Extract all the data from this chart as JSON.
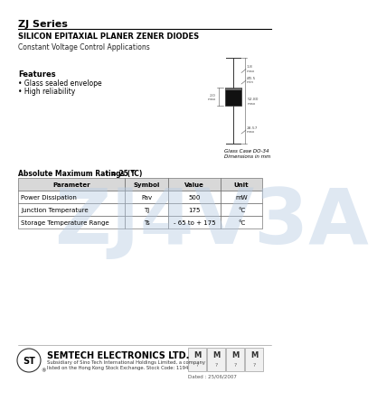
{
  "title": "ZJ Series",
  "subtitle": "SILICON EPITAXIAL PLANER ZENER DIODES",
  "application": "Constant Voltage Control Applications",
  "features_title": "Features",
  "features": [
    "Glass sealed envelope",
    "High reliability"
  ],
  "package_label": "Glass Case DO-34\nDimensions in mm",
  "table_title": "Absolute Maximum Ratings (T",
  "table_title2": " = 25 °C)",
  "table_headers": [
    "Parameter",
    "Symbol",
    "Value",
    "Unit"
  ],
  "table_rows": [
    [
      "Power Dissipation",
      "Pav",
      "500",
      "mW"
    ],
    [
      "Junction Temperature",
      "Tj",
      "175",
      "°C"
    ],
    [
      "Storage Temperature Range",
      "Ts",
      "- 65 to + 175",
      "°C"
    ]
  ],
  "watermark_text": "ZJ4V3A",
  "watermark_color": "#b8cce4",
  "watermark_alpha": 0.45,
  "company": "SEMTECH ELECTRONICS LTD.",
  "company_sub1": "Subsidiary of Sino Tech International Holdings Limited, a company",
  "company_sub2": "listed on the Hong Kong Stock Exchange. Stock Code: 1194",
  "date_label": "Dated : 25/06/2007",
  "bg_color": "#ffffff",
  "text_color": "#000000",
  "line_color": "#000000",
  "dim_color": "#555555",
  "header_bg": "#d8d8d8",
  "row_bg": "#ffffff"
}
